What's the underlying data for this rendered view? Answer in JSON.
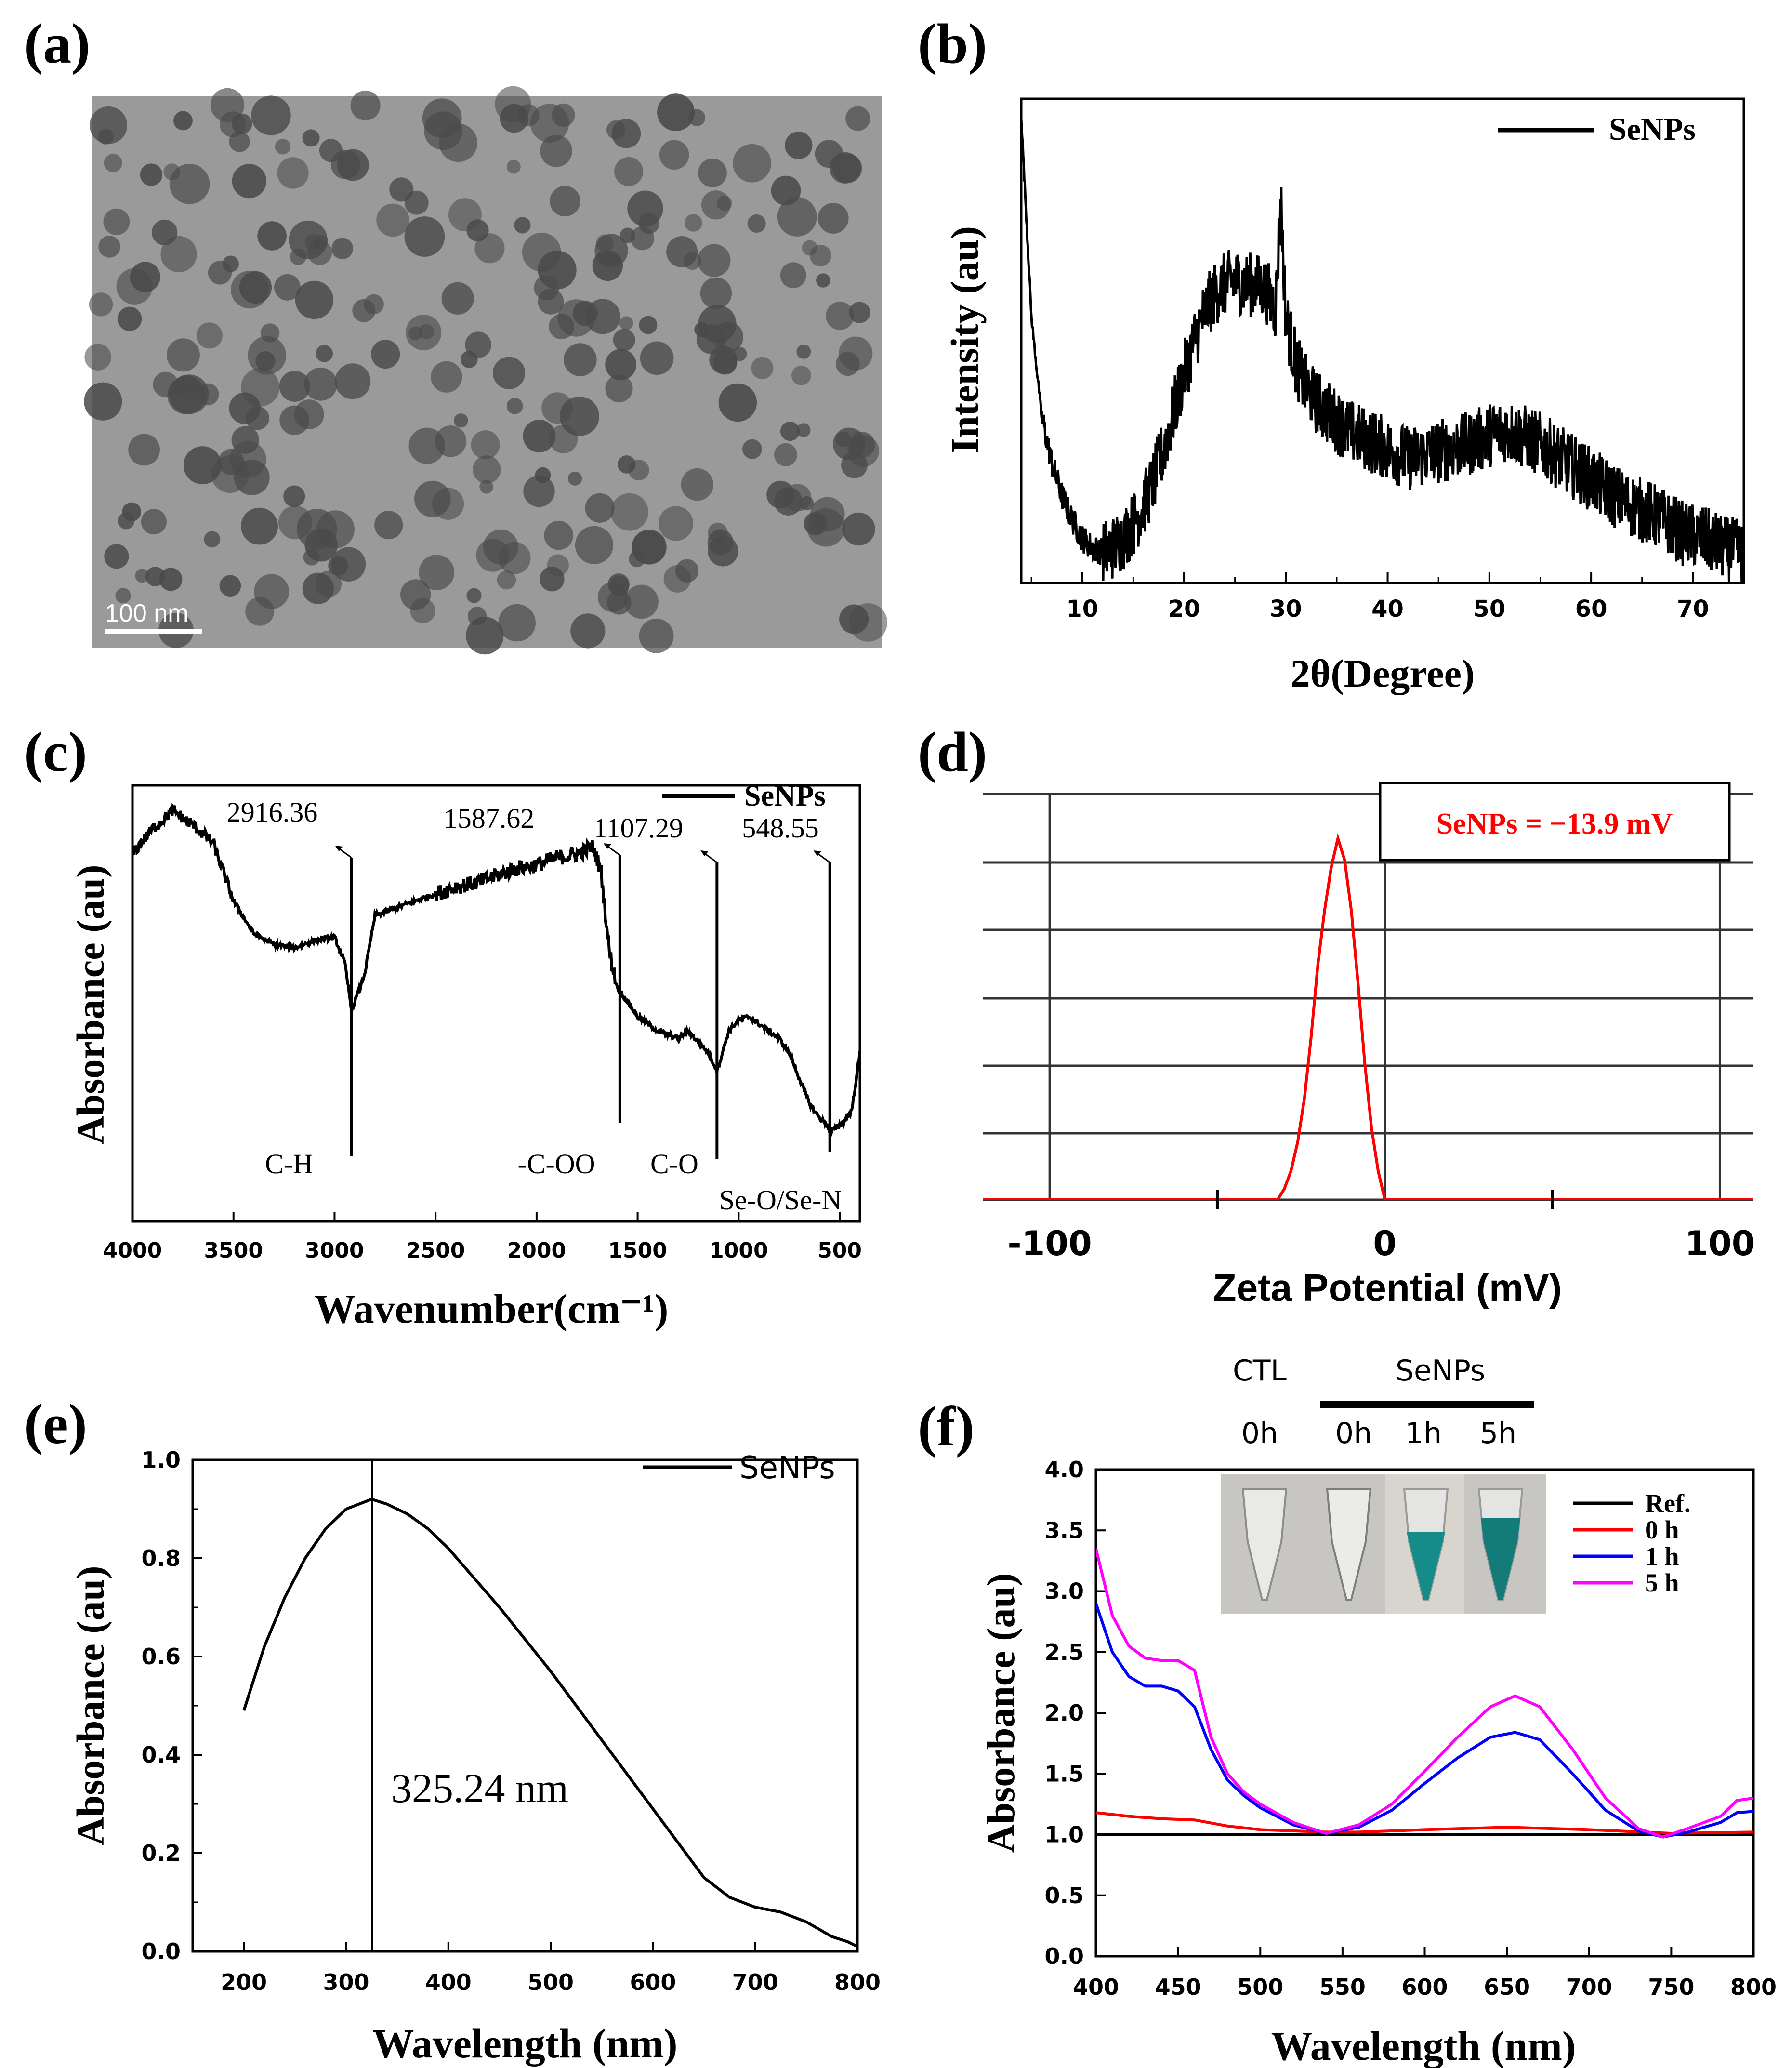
{
  "panels": {
    "a": {
      "label": "(a)",
      "scale_bar": "100 nm"
    },
    "b": {
      "label": "(b)"
    },
    "c": {
      "label": "(c)"
    },
    "d": {
      "label": "(d)"
    },
    "e": {
      "label": "(e)"
    },
    "f": {
      "label": "(f)"
    }
  },
  "chart_data": [
    {
      "id": "b",
      "type": "line",
      "title": "",
      "xlabel": "2θ(Degree)",
      "ylabel": "Intensity (au)",
      "xlim": [
        4,
        75
      ],
      "ylim": [
        0,
        100
      ],
      "xticks": [
        "10",
        "20",
        "30",
        "40",
        "50",
        "60",
        "70"
      ],
      "legend": [
        "SeNPs"
      ],
      "legend_position": "top-right",
      "colors": {
        "SeNPs": "#000000"
      },
      "series": [
        {
          "name": "SeNPs",
          "x": [
            4,
            5,
            6,
            7,
            8,
            9,
            10,
            11,
            12,
            13,
            14,
            15,
            16,
            17,
            18,
            19,
            20,
            21,
            22,
            23,
            24,
            25,
            26,
            27,
            28,
            29,
            29.5,
            30,
            31,
            32,
            33,
            34,
            35,
            36,
            38,
            40,
            42,
            44,
            46,
            48,
            50,
            51.5,
            53,
            55,
            57,
            59,
            61,
            63,
            65,
            67,
            69,
            71,
            73,
            75
          ],
          "y": [
            98,
            55,
            34,
            24,
            17,
            12,
            8,
            6,
            5,
            6,
            8,
            11,
            15,
            20,
            27,
            35,
            43,
            50,
            56,
            60,
            62,
            63,
            62,
            62,
            61,
            57,
            80,
            55,
            45,
            40,
            37,
            35,
            33,
            31,
            29,
            27,
            25,
            26,
            27,
            28,
            30,
            31,
            30,
            28,
            25,
            22,
            19,
            16,
            14,
            12,
            9,
            8,
            6,
            5
          ]
        }
      ]
    },
    {
      "id": "c",
      "type": "line",
      "title": "",
      "xlabel": "Wavenumber(cm⁻¹)",
      "ylabel": "Absorbance (au)",
      "xlim": [
        4000,
        400
      ],
      "ylim": [
        0,
        100
      ],
      "xticks": [
        "4000",
        "3500",
        "3000",
        "2500",
        "2000",
        "1500",
        "1000",
        "500"
      ],
      "legend": [
        "SeNPs"
      ],
      "legend_position": "top-right",
      "colors": {
        "SeNPs": "#000000"
      },
      "series": [
        {
          "name": "SeNPs",
          "x": [
            4000,
            3900,
            3800,
            3700,
            3600,
            3500,
            3400,
            3300,
            3200,
            3100,
            3000,
            2950,
            2916,
            2880,
            2850,
            2800,
            2700,
            2600,
            2500,
            2400,
            2300,
            2200,
            2100,
            2000,
            1900,
            1800,
            1720,
            1680,
            1640,
            1600,
            1587,
            1560,
            1500,
            1450,
            1400,
            1350,
            1300,
            1250,
            1200,
            1150,
            1107,
            1080,
            1050,
            1000,
            950,
            900,
            850,
            800,
            750,
            700,
            650,
            600,
            560,
            549,
            520,
            480,
            440,
            400
          ],
          "y": [
            85,
            92,
            97,
            93,
            88,
            72,
            63,
            60,
            59,
            61,
            62,
            55,
            42,
            47,
            52,
            68,
            70,
            72,
            74,
            76,
            77,
            79,
            81,
            82,
            84,
            85,
            87,
            80,
            58,
            48,
            47,
            45,
            40,
            38,
            36,
            35,
            34,
            36,
            33,
            30,
            25,
            30,
            36,
            39,
            40,
            38,
            36,
            34,
            30,
            23,
            16,
            12,
            10,
            8,
            9,
            11,
            14,
            30
          ]
        }
      ],
      "annotations": [
        {
          "label": "2916.36",
          "group": "C-H",
          "x": 2916.36
        },
        {
          "label": "1587.62",
          "group": "-C-OO",
          "x": 1587.62
        },
        {
          "label": "1107.29",
          "group": "C-O",
          "x": 1107.29
        },
        {
          "label": "548.55",
          "group": "Se-O/Se-N",
          "x": 548.55
        }
      ]
    },
    {
      "id": "d",
      "type": "line",
      "title": "",
      "xlabel": "Zeta Potential (mV)",
      "ylabel": "",
      "xlim": [
        -120,
        110
      ],
      "ylim": [
        0,
        100
      ],
      "xticks": [
        "-100",
        "0",
        "100"
      ],
      "annotation": "SeNPs = −13.9 mV",
      "colors": {
        "curve": "#ff0000",
        "annotation": "#ff0000"
      },
      "series": [
        {
          "name": "SeNPs",
          "x": [
            -120,
            -32,
            -30,
            -28,
            -26,
            -24,
            -22,
            -20,
            -18,
            -16,
            -14,
            -12,
            -10,
            -8,
            -6,
            -4,
            -2,
            0,
            110
          ],
          "y": [
            0,
            0,
            3,
            8,
            16,
            28,
            45,
            65,
            80,
            92,
            100,
            94,
            80,
            60,
            38,
            20,
            8,
            0,
            0
          ]
        }
      ]
    },
    {
      "id": "e",
      "type": "line",
      "title": "",
      "xlabel": "Wavelength (nm)",
      "ylabel": "Absorbance (au)",
      "xlim": [
        150,
        800
      ],
      "ylim": [
        0,
        1.0
      ],
      "xticks": [
        "200",
        "300",
        "400",
        "500",
        "600",
        "700",
        "800"
      ],
      "yticks": [
        "0.0",
        "0.2",
        "0.4",
        "0.6",
        "0.8",
        "1.0"
      ],
      "legend": [
        "SeNPs"
      ],
      "legend_position": "top-right",
      "peak_label": "325.24 nm",
      "peak_x": 325.24,
      "colors": {
        "SeNPs": "#000000"
      },
      "series": [
        {
          "name": "SeNPs",
          "x": [
            200,
            220,
            240,
            260,
            280,
            300,
            325,
            340,
            360,
            380,
            400,
            450,
            500,
            550,
            600,
            650,
            675,
            700,
            725,
            750,
            775,
            790,
            800
          ],
          "y": [
            0.49,
            0.62,
            0.72,
            0.8,
            0.86,
            0.9,
            0.92,
            0.91,
            0.89,
            0.86,
            0.82,
            0.7,
            0.57,
            0.43,
            0.29,
            0.15,
            0.11,
            0.09,
            0.08,
            0.06,
            0.03,
            0.02,
            0.01
          ]
        }
      ]
    },
    {
      "id": "f",
      "type": "line",
      "title": "",
      "xlabel": "Wavelength (nm)",
      "ylabel": "Absorbance (au)",
      "xlim": [
        400,
        800
      ],
      "ylim": [
        0.0,
        4.0
      ],
      "xticks": [
        "400",
        "450",
        "500",
        "550",
        "600",
        "650",
        "700",
        "750",
        "800"
      ],
      "yticks": [
        "0.0",
        "0.5",
        "1.0",
        "1.5",
        "2.0",
        "2.5",
        "3.0",
        "3.5",
        "4.0"
      ],
      "legend": [
        "Ref.",
        "0 h",
        "1 h",
        "5 h"
      ],
      "legend_position": "top-right",
      "inset": {
        "group_ctl": "CTL",
        "group_senps": "SeNPs",
        "times": [
          "0h",
          "0h",
          "1h",
          "5h"
        ]
      },
      "colors": {
        "Ref.": "#000000",
        "0 h": "#ff0000",
        "1 h": "#0000ff",
        "5 h": "#ff00ff"
      },
      "series": [
        {
          "name": "Ref.",
          "x": [
            400,
            800
          ],
          "y": [
            1.0,
            1.0
          ]
        },
        {
          "name": "0 h",
          "x": [
            400,
            420,
            440,
            460,
            480,
            500,
            520,
            540,
            560,
            600,
            650,
            700,
            750,
            800
          ],
          "y": [
            1.18,
            1.15,
            1.13,
            1.12,
            1.07,
            1.04,
            1.03,
            1.02,
            1.02,
            1.04,
            1.06,
            1.04,
            1.01,
            1.02
          ]
        },
        {
          "name": "1 h",
          "x": [
            400,
            410,
            420,
            430,
            440,
            450,
            460,
            470,
            480,
            490,
            500,
            520,
            540,
            560,
            580,
            600,
            620,
            640,
            655,
            670,
            690,
            710,
            730,
            745,
            760,
            780,
            790,
            800
          ],
          "y": [
            2.9,
            2.5,
            2.3,
            2.22,
            2.22,
            2.18,
            2.05,
            1.7,
            1.45,
            1.32,
            1.22,
            1.08,
            1.01,
            1.06,
            1.2,
            1.42,
            1.63,
            1.8,
            1.84,
            1.78,
            1.5,
            1.2,
            1.03,
            0.98,
            1.02,
            1.1,
            1.18,
            1.19
          ]
        },
        {
          "name": "5 h",
          "x": [
            400,
            410,
            420,
            430,
            440,
            450,
            460,
            470,
            480,
            490,
            500,
            520,
            540,
            560,
            580,
            600,
            620,
            640,
            655,
            670,
            690,
            710,
            730,
            745,
            760,
            780,
            790,
            800
          ],
          "y": [
            3.35,
            2.8,
            2.55,
            2.45,
            2.43,
            2.43,
            2.35,
            1.8,
            1.5,
            1.35,
            1.25,
            1.1,
            1.01,
            1.08,
            1.25,
            1.52,
            1.8,
            2.05,
            2.14,
            2.05,
            1.7,
            1.3,
            1.05,
            0.98,
            1.05,
            1.15,
            1.28,
            1.3
          ]
        }
      ]
    }
  ]
}
